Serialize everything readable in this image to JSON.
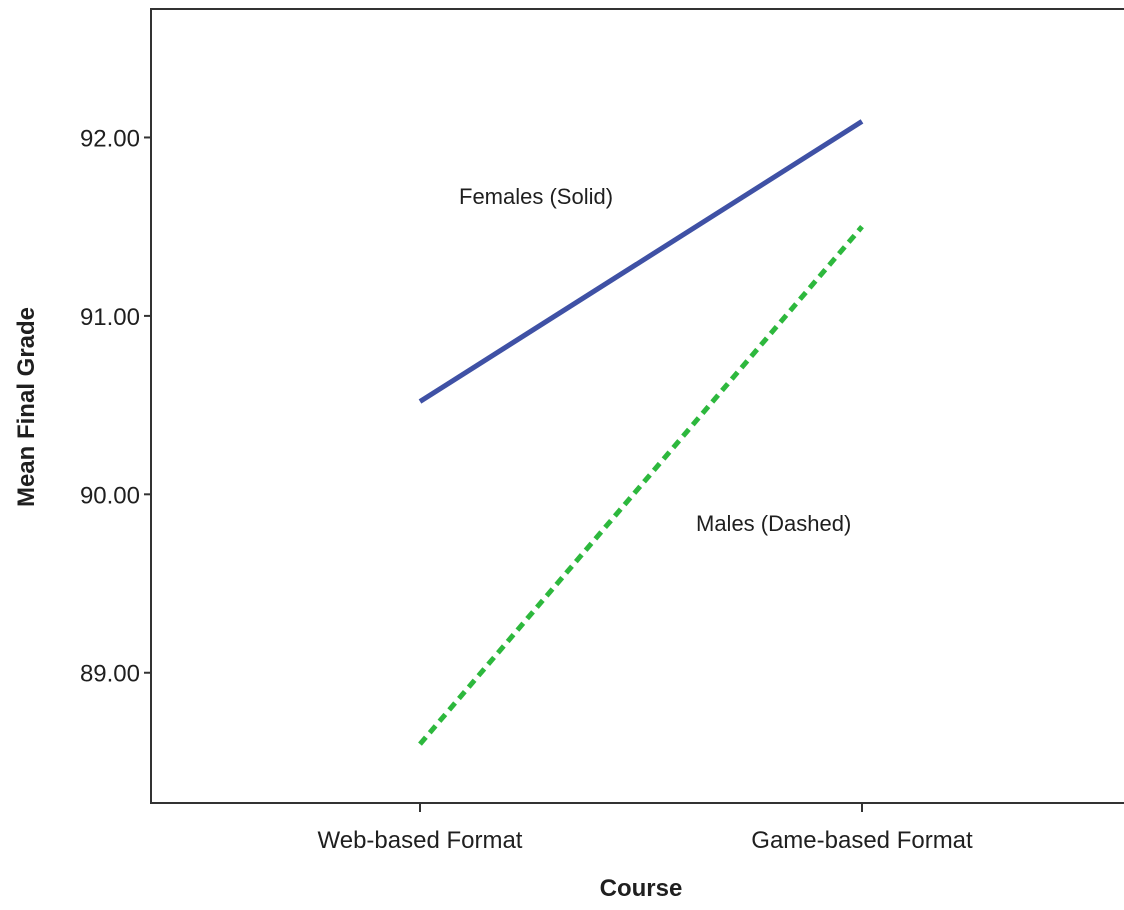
{
  "chart_data": {
    "type": "line",
    "title": "",
    "xlabel": "Course",
    "ylabel": "Mean Final Grade",
    "categories": [
      "Web-based Format",
      "Game-based Format"
    ],
    "yticks": [
      "89.00",
      "90.00",
      "91.00",
      "92.00"
    ],
    "ylim": [
      88.27,
      92.72
    ],
    "grid": false,
    "legend": "none",
    "series": [
      {
        "values": [
          90.52,
          92.09
        ],
        "color": "#3f51a5",
        "style": "solid"
      },
      {
        "values": [
          88.6,
          91.5
        ],
        "color": "#2db83d",
        "style": "dashed"
      }
    ],
    "annotations": [
      {
        "text": "Females (Solid)"
      },
      {
        "text": "Males (Dashed)"
      }
    ]
  }
}
